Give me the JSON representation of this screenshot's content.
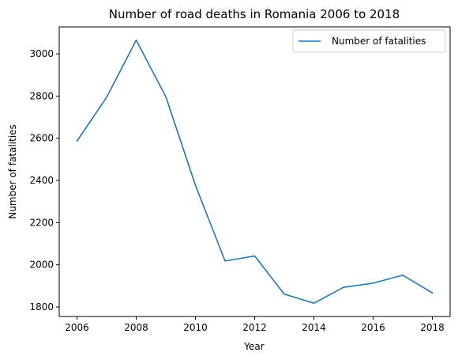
{
  "chart_data": {
    "type": "line",
    "title": "Number of road deaths in Romania 2006 to 2018",
    "xlabel": "Year",
    "ylabel": "Number of fatalities",
    "x": [
      2006,
      2007,
      2008,
      2009,
      2010,
      2011,
      2012,
      2013,
      2014,
      2015,
      2016,
      2017,
      2018
    ],
    "series": [
      {
        "name": "Number of fatalities",
        "color": "#1f77b4",
        "values": [
          2587,
          2794,
          3065,
          2797,
          2377,
          2018,
          2042,
          1861,
          1818,
          1893,
          1913,
          1951,
          1867
        ]
      }
    ],
    "xlim": [
      2005.4,
      2018.6
    ],
    "ylim": [
      1755,
      3128
    ],
    "xticks": [
      2006,
      2008,
      2010,
      2012,
      2014,
      2016,
      2018
    ],
    "yticks": [
      1800,
      2000,
      2200,
      2400,
      2600,
      2800,
      3000
    ],
    "grid": false,
    "legend_position": "top-right"
  }
}
